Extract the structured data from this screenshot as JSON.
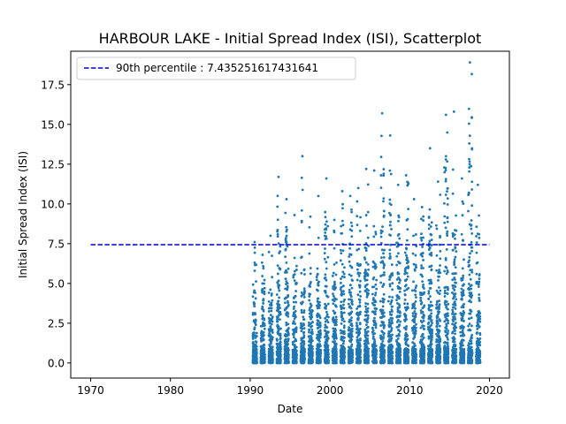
{
  "chart_data": {
    "type": "scatter",
    "title": "HARBOUR LAKE - Initial Spread Index (ISI), Scatterplot",
    "xlabel": "Date",
    "ylabel": "Initial Spread Index (ISI)",
    "xlim": [
      1967.5,
      2022.5
    ],
    "ylim": [
      -0.95,
      19.6
    ],
    "x_ticks": [
      1970,
      1980,
      1990,
      2000,
      2010,
      2020
    ],
    "y_ticks": [
      0.0,
      2.5,
      5.0,
      7.5,
      10.0,
      12.5,
      15.0,
      17.5
    ],
    "grid": false,
    "legend": {
      "position": "upper-left",
      "entries": [
        {
          "label": "90th percentile : 7.435251617431641",
          "style": "dashed",
          "color": "#0000cc"
        }
      ]
    },
    "reference_line": {
      "value": 7.435251617431641,
      "x_start": 1970,
      "x_end": 2020,
      "color": "#0000cc"
    },
    "series": [
      {
        "color": "#1f77b4",
        "season_months": [
          5,
          10
        ],
        "years": [
          {
            "year": 1990,
            "max": 7.6
          },
          {
            "year": 1991,
            "max": 6.8
          },
          {
            "year": 1992,
            "max": 8.0
          },
          {
            "year": 1993,
            "max": 11.7
          },
          {
            "year": 1994,
            "max": 10.3
          },
          {
            "year": 1995,
            "max": 9.3
          },
          {
            "year": 1996,
            "max": 13.0
          },
          {
            "year": 1997,
            "max": 9.2
          },
          {
            "year": 1998,
            "max": 10.5
          },
          {
            "year": 1999,
            "max": 11.6
          },
          {
            "year": 2000,
            "max": 9.0
          },
          {
            "year": 2001,
            "max": 10.8
          },
          {
            "year": 2002,
            "max": 10.5
          },
          {
            "year": 2003,
            "max": 11.0
          },
          {
            "year": 2004,
            "max": 12.2
          },
          {
            "year": 2005,
            "max": 12.1
          },
          {
            "year": 2006,
            "max": 15.7
          },
          {
            "year": 2007,
            "max": 14.3
          },
          {
            "year": 2008,
            "max": 11.2
          },
          {
            "year": 2009,
            "max": 11.8
          },
          {
            "year": 2010,
            "max": 10.3
          },
          {
            "year": 2011,
            "max": 9.8
          },
          {
            "year": 2012,
            "max": 13.5
          },
          {
            "year": 2013,
            "max": 11.4
          },
          {
            "year": 2014,
            "max": 15.6
          },
          {
            "year": 2015,
            "max": 15.8
          },
          {
            "year": 2016,
            "max": 11.6
          },
          {
            "year": 2017,
            "max": 18.9
          },
          {
            "year": 2018,
            "max": 11.2
          }
        ]
      }
    ]
  }
}
